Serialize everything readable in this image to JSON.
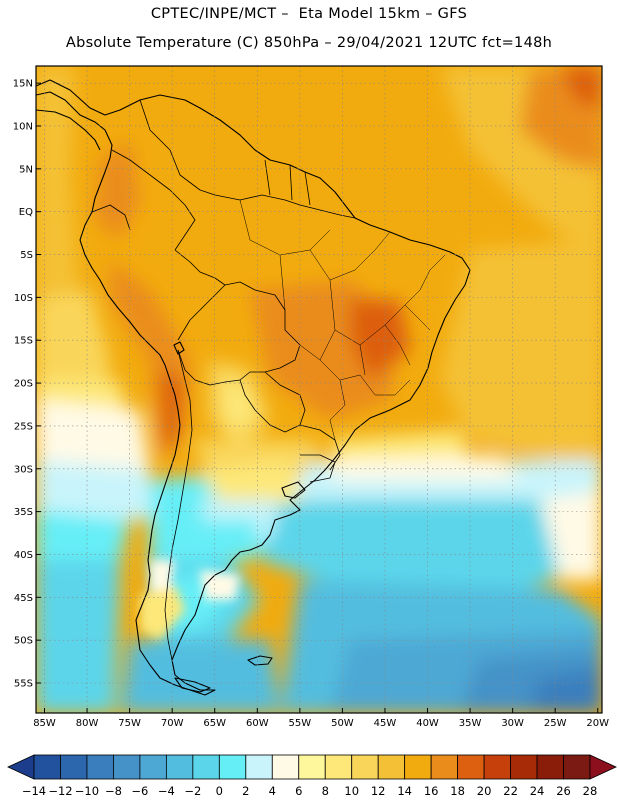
{
  "header": {
    "line1": "CPTEC/INPE/MCT –  Eta Model 15km – GFS",
    "line2": "Absolute Temperature (C) 850hPa – 29/04/2021 12UTC fct=148h"
  },
  "map": {
    "lon_range": [
      -86,
      -19.5
    ],
    "lat_range": [
      -58.5,
      17
    ],
    "lat_ticks": [
      {
        "value": 15,
        "label": "15N"
      },
      {
        "value": 10,
        "label": "10N"
      },
      {
        "value": 5,
        "label": "5N"
      },
      {
        "value": 0,
        "label": "EQ"
      },
      {
        "value": -5,
        "label": "5S"
      },
      {
        "value": -10,
        "label": "10S"
      },
      {
        "value": -15,
        "label": "15S"
      },
      {
        "value": -20,
        "label": "20S"
      },
      {
        "value": -25,
        "label": "25S"
      },
      {
        "value": -30,
        "label": "30S"
      },
      {
        "value": -35,
        "label": "35S"
      },
      {
        "value": -40,
        "label": "40S"
      },
      {
        "value": -45,
        "label": "45S"
      },
      {
        "value": -50,
        "label": "50S"
      },
      {
        "value": -55,
        "label": "55S"
      }
    ],
    "lon_ticks": [
      {
        "value": -85,
        "label": "85W"
      },
      {
        "value": -80,
        "label": "80W"
      },
      {
        "value": -75,
        "label": "75W"
      },
      {
        "value": -70,
        "label": "70W"
      },
      {
        "value": -65,
        "label": "65W"
      },
      {
        "value": -60,
        "label": "60W"
      },
      {
        "value": -55,
        "label": "55W"
      },
      {
        "value": -50,
        "label": "50W"
      },
      {
        "value": -45,
        "label": "45W"
      },
      {
        "value": -40,
        "label": "40W"
      },
      {
        "value": -35,
        "label": "35W"
      },
      {
        "value": -30,
        "label": "30W"
      },
      {
        "value": -25,
        "label": "25W"
      },
      {
        "value": -20,
        "label": "20W"
      }
    ],
    "grid": true
  },
  "colorbar": {
    "labels": [
      "-14",
      "-12",
      "-10",
      "-8",
      "-6",
      "-4",
      "-2",
      "0",
      "2",
      "4",
      "6",
      "8",
      "10",
      "12",
      "14",
      "16",
      "18",
      "20",
      "22",
      "24",
      "26",
      "28"
    ],
    "colors": [
      "#1c3c8c",
      "#22519e",
      "#2c66ad",
      "#3a7ebd",
      "#4592c8",
      "#4da8d4",
      "#52bddf",
      "#5bd5ea",
      "#66eef7",
      "#c9f4fb",
      "#fffae6",
      "#fff79b",
      "#fde879",
      "#f9d65a",
      "#f4c136",
      "#f2ab0e",
      "#ea8c1b",
      "#dd5f10",
      "#c6400b",
      "#a82b08",
      "#8a1c0a",
      "#7a1a12",
      "#8c0f1e"
    ]
  }
}
